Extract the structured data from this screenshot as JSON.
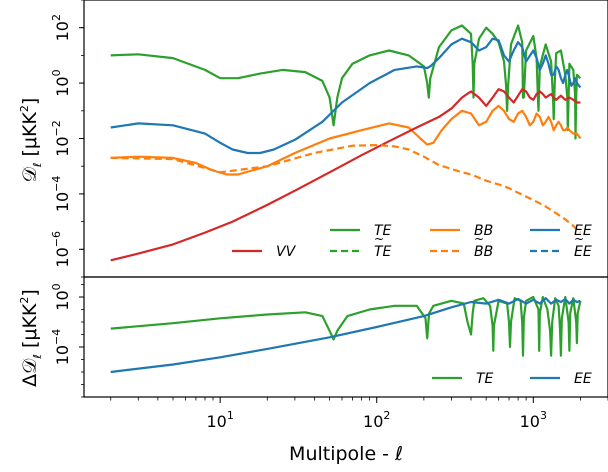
{
  "colors": {
    "TE": "#2ca02c",
    "BB": "#ff7f0e",
    "EE": "#1f77b4",
    "VV": "#d62728"
  },
  "chart_data": [
    {
      "type": "line",
      "panel": "top",
      "ylabel": "𝒟",
      "ylabel_sub": "ℓ",
      "ylabel_units": "[μK",
      "xscale": "log",
      "yscale": "log",
      "xlim": [
        1.35,
        3000
      ],
      "ylim": [
        1e-07,
        1000.0
      ],
      "x_ticks": [
        {
          "base": "10",
          "exp": "1"
        },
        {
          "base": "10",
          "exp": "2"
        },
        {
          "base": "10",
          "exp": "3"
        }
      ],
      "y_ticks": [
        {
          "base": "10",
          "exp": "2"
        },
        {
          "base": "10",
          "exp": "0"
        },
        {
          "base": "10",
          "exp": "−2"
        },
        {
          "base": "10",
          "exp": "−4"
        },
        {
          "base": "10",
          "exp": "−6"
        }
      ],
      "legend": {
        "placement": "bottom-right",
        "entries": [
          {
            "key": "VV",
            "label": "VV",
            "style": "solid"
          },
          {
            "key": "TE",
            "label": "TE",
            "style": "solid"
          },
          {
            "key": "TE",
            "label": "TE",
            "style": "dashed",
            "tilde": true
          },
          {
            "key": "BB",
            "label": "BB",
            "style": "solid"
          },
          {
            "key": "BB",
            "label": "BB",
            "style": "dashed",
            "tilde": true
          },
          {
            "key": "EE",
            "label": "EE",
            "style": "solid"
          },
          {
            "key": "EE",
            "label": "EE",
            "style": "dashed",
            "tilde": true
          }
        ]
      },
      "series": [
        {
          "name": "TE",
          "style": "solid",
          "key": "TE",
          "x": [
            2,
            3,
            5,
            8,
            10,
            13,
            18,
            25,
            35,
            45,
            50,
            53,
            56,
            60,
            70,
            90,
            120,
            160,
            200,
            210,
            215,
            220,
            250,
            300,
            350,
            400,
            410,
            415,
            420,
            450,
            500,
            550,
            600,
            650,
            670,
            680,
            690,
            720,
            800,
            850,
            860,
            870,
            900,
            1000,
            1050,
            1070,
            1080,
            1100,
            1200,
            1300,
            1340,
            1350,
            1370,
            1400,
            1500,
            1600,
            1650,
            1660,
            1680,
            1700,
            1800,
            1850,
            1860,
            1880,
            1900,
            2000
          ],
          "y": [
            10,
            11,
            8,
            3,
            1.5,
            1.5,
            2.2,
            3,
            2.5,
            1.2,
            0.3,
            0.03,
            0.3,
            1.5,
            5,
            10,
            15,
            10,
            4,
            1,
            0.3,
            1.5,
            20,
            80,
            120,
            60,
            5,
            0.3,
            5,
            40,
            100,
            60,
            30,
            6,
            0.8,
            0.1,
            0.8,
            25,
            120,
            30,
            0.3,
            0.3,
            15,
            50,
            8,
            0.3,
            0.1,
            4,
            25,
            6,
            0.2,
            0.05,
            1,
            12,
            15,
            2,
            0.3,
            0.02,
            0.3,
            5,
            3,
            0.4,
            0.01,
            0.3,
            2,
            1.5
          ]
        },
        {
          "name": "EE",
          "style": "solid",
          "key": "EE",
          "x": [
            2,
            3,
            5,
            8,
            10,
            12,
            15,
            18,
            22,
            30,
            45,
            60,
            90,
            130,
            180,
            210,
            220,
            250,
            300,
            350,
            400,
            450,
            500,
            550,
            600,
            650,
            700,
            750,
            800,
            850,
            900,
            1000,
            1050,
            1100,
            1150,
            1200,
            1250,
            1300,
            1350,
            1400,
            1450,
            1500,
            1550,
            1600,
            1650,
            1700,
            1750,
            1800,
            1850,
            1900,
            2000
          ],
          "y": [
            0.025,
            0.035,
            0.03,
            0.015,
            0.007,
            0.004,
            0.003,
            0.003,
            0.004,
            0.009,
            0.04,
            0.2,
            1,
            3,
            4,
            3.5,
            4,
            8,
            25,
            40,
            30,
            15,
            20,
            40,
            35,
            10,
            6,
            15,
            30,
            20,
            6,
            15,
            8,
            3,
            5,
            10,
            5,
            2,
            2,
            4,
            3,
            1.5,
            1,
            2,
            3,
            1.5,
            0.8,
            1,
            1.5,
            1,
            0.7
          ]
        },
        {
          "name": "BB",
          "style": "solid",
          "key": "BB",
          "x": [
            2,
            3,
            5,
            7,
            9,
            11,
            13,
            16,
            20,
            30,
            50,
            80,
            120,
            160,
            190,
            210,
            230,
            260,
            300,
            350,
            400,
            450,
            500,
            550,
            600,
            650,
            700,
            750,
            800,
            850,
            900,
            950,
            1000,
            1050,
            1100,
            1150,
            1200,
            1250,
            1300,
            1350,
            1400,
            1450,
            1500,
            1550,
            1600,
            1650,
            1700,
            1800,
            1900,
            2000
          ],
          "y": [
            0.002,
            0.0022,
            0.002,
            0.0013,
            0.0007,
            0.0005,
            0.0005,
            0.0007,
            0.001,
            0.003,
            0.01,
            0.02,
            0.035,
            0.025,
            0.01,
            0.006,
            0.007,
            0.02,
            0.05,
            0.1,
            0.08,
            0.03,
            0.04,
            0.1,
            0.15,
            0.1,
            0.05,
            0.04,
            0.08,
            0.1,
            0.06,
            0.03,
            0.04,
            0.08,
            0.06,
            0.03,
            0.04,
            0.06,
            0.04,
            0.02,
            0.03,
            0.04,
            0.03,
            0.02,
            0.02,
            0.025,
            0.02,
            0.015,
            0.015,
            0.01
          ]
        },
        {
          "name": "VV",
          "style": "solid",
          "key": "VV",
          "x": [
            2,
            3,
            5,
            8,
            12,
            20,
            30,
            50,
            80,
            120,
            180,
            250,
            300,
            350,
            400,
            450,
            500,
            550,
            600,
            650,
            700,
            750,
            800,
            850,
            900,
            950,
            1000,
            1050,
            1100,
            1150,
            1200,
            1250,
            1300,
            1350,
            1400,
            1450,
            1500,
            1600,
            1700,
            1800,
            1900,
            2000
          ],
          "y": [
            4e-07,
            7e-07,
            1.5e-06,
            4e-06,
            1e-05,
            4e-05,
            0.00013,
            0.0006,
            0.0025,
            0.008,
            0.025,
            0.06,
            0.12,
            0.3,
            0.5,
            0.3,
            0.15,
            0.3,
            0.6,
            0.5,
            0.3,
            0.2,
            0.35,
            0.6,
            0.5,
            0.3,
            0.25,
            0.4,
            0.5,
            0.4,
            0.3,
            0.35,
            0.4,
            0.3,
            0.25,
            0.3,
            0.35,
            0.25,
            0.3,
            0.25,
            0.2,
            0.2
          ]
        },
        {
          "name": "BB (dashed)",
          "style": "dashed",
          "key": "BB",
          "x": [
            2,
            5,
            10,
            20,
            40,
            70,
            100,
            130,
            160,
            200,
            250,
            300,
            350,
            400,
            500,
            600,
            700,
            800,
            900,
            1000,
            1200,
            1400,
            1600,
            1800,
            2000
          ],
          "y": [
            0.002,
            0.0018,
            0.0006,
            0.001,
            0.003,
            0.0055,
            0.0058,
            0.0052,
            0.004,
            0.0022,
            0.0011,
            0.0008,
            0.0006,
            0.0005,
            0.0003,
            0.00022,
            0.00016,
            0.00011,
            8e-05,
            6e-05,
            3.5e-05,
            2e-05,
            1.2e-05,
            7e-06,
            4e-06
          ]
        }
      ]
    },
    {
      "type": "line",
      "panel": "bottom",
      "ylabel": "Δ𝒟",
      "ylabel_sub": "ℓ",
      "ylabel_units": "[μK",
      "xlabel": "Multipole - ℓ",
      "xscale": "log",
      "yscale": "log",
      "xlim": [
        1.35,
        3000
      ],
      "ylim": [
        1e-08,
        40
      ],
      "y_ticks": [
        {
          "base": "10",
          "exp": "0"
        },
        {
          "base": "10",
          "exp": "−4"
        }
      ],
      "legend": {
        "placement": "bottom-right",
        "entries": [
          {
            "key": "TE",
            "label": "TE",
            "style": "solid"
          },
          {
            "key": "EE",
            "label": "EE",
            "style": "solid"
          }
        ]
      },
      "series": [
        {
          "name": "TE",
          "style": "solid",
          "key": "TE",
          "x": [
            2,
            5,
            10,
            20,
            35,
            45,
            50,
            53,
            56,
            65,
            90,
            130,
            180,
            205,
            210,
            213,
            216,
            230,
            300,
            360,
            380,
            400,
            410,
            420,
            480,
            530,
            550,
            555,
            560,
            600,
            680,
            700,
            710,
            720,
            760,
            830,
            850,
            860,
            870,
            900,
            1000,
            1080,
            1090,
            1100,
            1150,
            1230,
            1280,
            1300,
            1320,
            1380,
            1450,
            1480,
            1500,
            1520,
            1600,
            1680,
            1700,
            1720,
            1800,
            1880,
            1900,
            1920,
            2000
          ],
          "y": [
            0.003,
            0.008,
            0.02,
            0.04,
            0.06,
            0.03,
            0.002,
            0.0004,
            0.002,
            0.03,
            0.1,
            0.2,
            0.2,
            0.02,
            0.0005,
            0.005,
            0.05,
            0.2,
            0.5,
            0.3,
            0.01,
            0.001,
            0.05,
            0.5,
            0.8,
            0.2,
            0.005,
            5e-05,
            0.005,
            0.5,
            0.3,
            0.01,
            0.0001,
            0.01,
            0.8,
            0.5,
            0.01,
            2e-05,
            0.02,
            0.5,
            1,
            0.1,
            5e-05,
            0.05,
            1,
            0.1,
            0.002,
            2e-05,
            0.01,
            0.8,
            0.2,
            0.003,
            2e-05,
            0.02,
            1,
            0.01,
            5e-05,
            0.05,
            0.8,
            0.01,
            0.0002,
            0.05,
            0.5
          ]
        },
        {
          "name": "EE",
          "style": "solid",
          "key": "EE",
          "x": [
            2,
            5,
            10,
            20,
            50,
            100,
            200,
            300,
            400,
            500,
            600,
            700,
            800,
            900,
            1000,
            1100,
            1200,
            1300,
            1400,
            1500,
            1600,
            1700,
            1800,
            1900,
            2000
          ],
          "y": [
            1e-06,
            4e-06,
            1.5e-05,
            7e-05,
            0.0006,
            0.004,
            0.03,
            0.15,
            0.4,
            0.3,
            0.6,
            0.3,
            0.7,
            0.3,
            0.6,
            0.3,
            0.8,
            0.3,
            0.6,
            0.4,
            0.7,
            0.3,
            0.6,
            0.4,
            0.5
          ]
        }
      ]
    }
  ]
}
